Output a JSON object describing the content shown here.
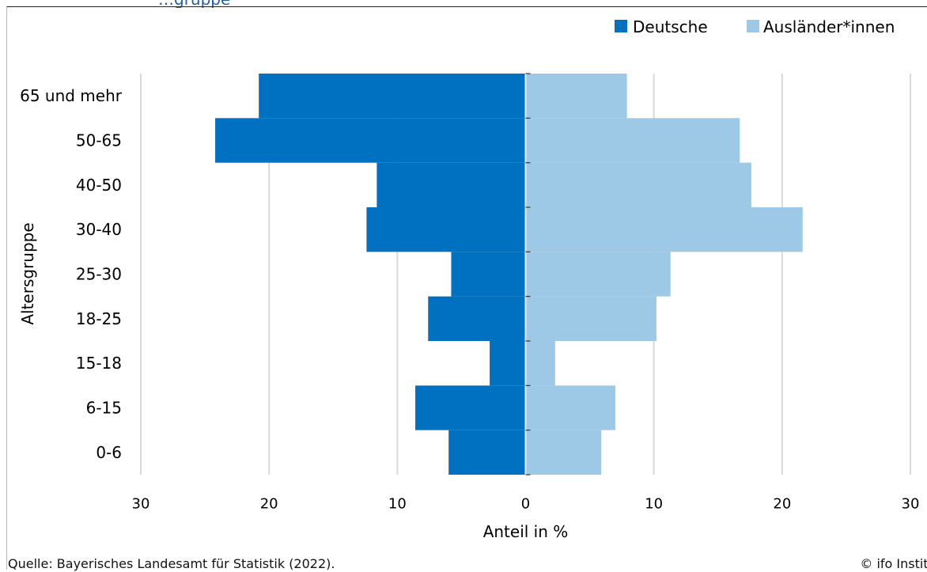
{
  "header": {
    "title_fragment": "…gruppe"
  },
  "chart_data": {
    "type": "bar",
    "orientation": "horizontal",
    "subtype": "population-pyramid",
    "categories": [
      "65 und mehr",
      "50-65",
      "40-50",
      "30-40",
      "25-30",
      "18-25",
      "15-18",
      "6-15",
      "0-6"
    ],
    "series": [
      {
        "name": "Deutsche",
        "color": "#0070c0",
        "values": [
          20.8,
          24.2,
          11.6,
          12.4,
          5.8,
          7.6,
          2.8,
          8.6,
          6.0
        ]
      },
      {
        "name": "Ausländer*innen",
        "color": "#9dc8e6",
        "values": [
          7.9,
          16.7,
          17.6,
          21.6,
          11.3,
          10.2,
          2.3,
          7.0,
          5.9
        ]
      }
    ],
    "xlabel": "Anteil in %",
    "ylabel": "Altersgruppe",
    "xlim": [
      -30,
      30
    ],
    "ticks": [
      -30,
      -20,
      -10,
      0,
      10,
      20,
      30
    ],
    "tick_labels": [
      "30",
      "20",
      "10",
      "0",
      "10",
      "20",
      "30"
    ],
    "grid": "vertical",
    "legend_position": "top-right"
  },
  "footer": {
    "source": "Quelle: Bayerisches Landesamt für Statistik (2022).",
    "copyright": "© ifo Institut"
  }
}
